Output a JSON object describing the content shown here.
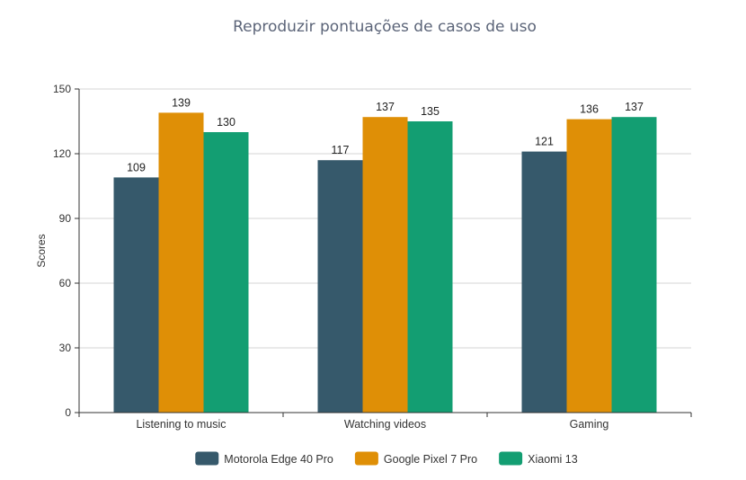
{
  "chart_data": {
    "type": "bar",
    "title": "Reproduzir pontuações de casos de uso",
    "ylabel": "Scores",
    "xlabel": "",
    "ylim": [
      0,
      150
    ],
    "yticks": [
      0,
      30,
      60,
      90,
      120,
      150
    ],
    "categories": [
      "Listening to music",
      "Watching videos",
      "Gaming"
    ],
    "series": [
      {
        "name": "Motorola Edge 40 Pro",
        "color": "#36596b",
        "values": [
          109,
          117,
          121
        ]
      },
      {
        "name": "Google Pixel 7 Pro",
        "color": "#df8f06",
        "values": [
          139,
          137,
          136
        ]
      },
      {
        "name": "Xiaomi 13",
        "color": "#139e72",
        "values": [
          130,
          135,
          137
        ]
      }
    ],
    "grid": true,
    "legend_position": "bottom-center"
  }
}
